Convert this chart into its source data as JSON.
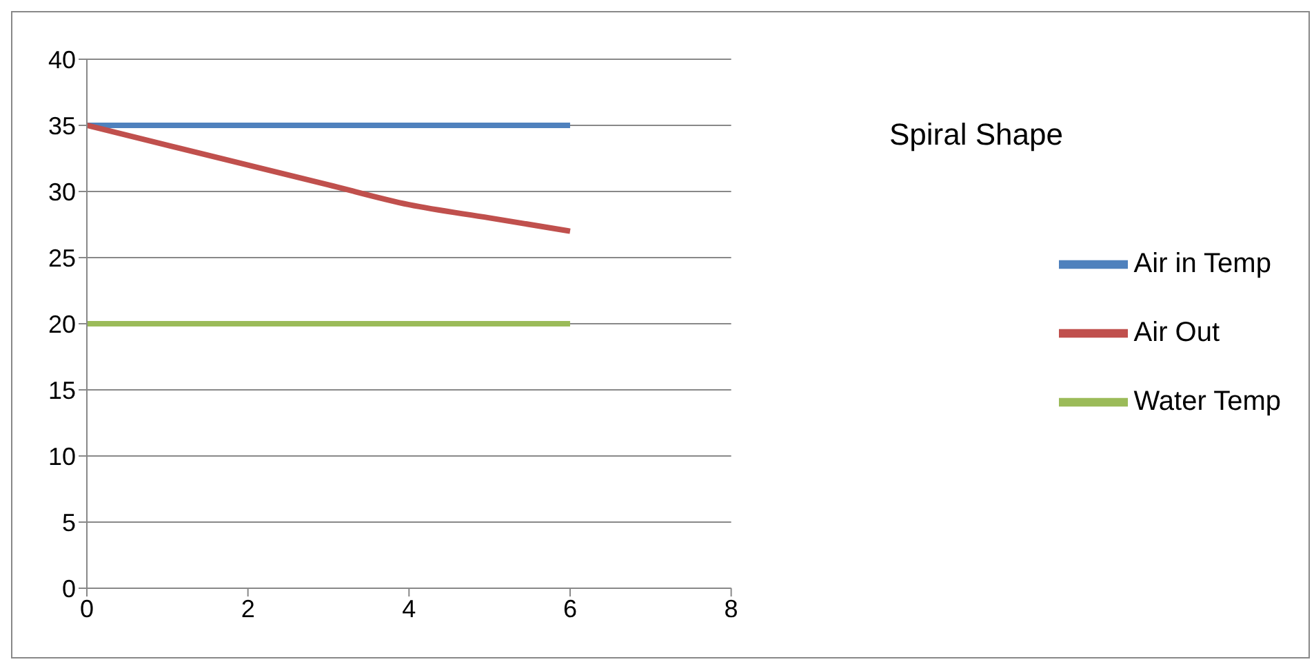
{
  "chart_data": {
    "type": "line",
    "title": "Spiral Shape",
    "x": [
      0,
      1,
      2,
      3,
      4,
      5,
      6
    ],
    "series": [
      {
        "name": "Air in Temp",
        "color": "#4f81bd",
        "values": [
          35,
          35,
          35,
          35,
          35,
          35,
          35
        ]
      },
      {
        "name": "Air Out",
        "color": "#c0504d",
        "values": [
          35,
          33.5,
          32,
          30.5,
          29,
          28,
          27
        ]
      },
      {
        "name": "Water Temp",
        "color": "#9bbb59",
        "values": [
          20,
          20,
          20,
          20,
          20,
          20,
          20
        ]
      }
    ],
    "xlim": [
      0,
      8
    ],
    "xticks": [
      0,
      2,
      4,
      6,
      8
    ],
    "ylim": [
      0,
      40
    ],
    "yticks": [
      0,
      5,
      10,
      15,
      20,
      25,
      30,
      35,
      40
    ],
    "grid": "y",
    "legend": "right",
    "marker": "none",
    "line_style": "solid"
  }
}
